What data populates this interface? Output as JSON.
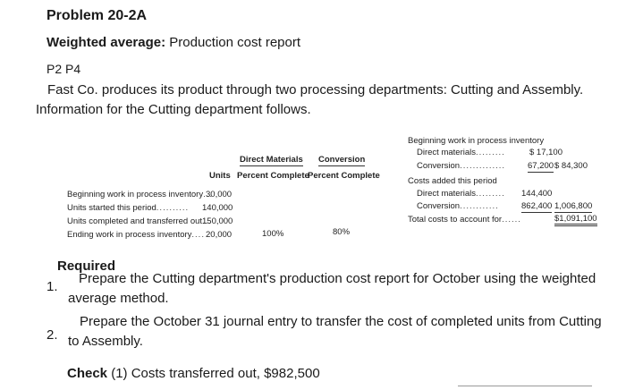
{
  "header": {
    "title": "Problem 20-2A",
    "subtitle_bold": "Weighted average:",
    "subtitle_rest": " Production cost report",
    "code": "P2 P4"
  },
  "intro": {
    "line1": "Fast Co. produces its product through two processing departments: Cutting and Assembly.",
    "line2": "Information for the Cutting department follows."
  },
  "units_table": {
    "col_direct_top": "Direct Materials",
    "col_conv_top": "Conversion",
    "col_units": "Units",
    "col_direct_bottom": "Percent Complete",
    "col_conv_bottom": "Percent Complete",
    "rows": [
      {
        "label": "Beginning work in process inventory",
        "dots": "...",
        "units": "30,000",
        "dm": "",
        "conv": ""
      },
      {
        "label": "Units started this period",
        "dots": "..........",
        "units": "140,000",
        "dm": "",
        "conv": ""
      },
      {
        "label": "Units completed and transferred out",
        "dots": "...",
        "units": "150,000",
        "dm": "",
        "conv": ""
      },
      {
        "label": "Ending work in process inventory",
        "dots": "....",
        "units": "20,000",
        "dm": "100%",
        "conv": "80%"
      }
    ]
  },
  "cost_table": {
    "heading1": "Beginning work in process inventory",
    "dm_label": "Direct materials",
    "dm_dots": ".........",
    "dm_value": "$ 17,100",
    "conv_label": "Conversion",
    "conv_dots": "..............",
    "conv_value": "67,200",
    "conv_total": "$   84,300",
    "heading2": "Costs added this period",
    "dm2_label": "Direct materials",
    "dm2_dots": ".........",
    "dm2_value": "144,400",
    "conv2_label": "Conversion",
    "conv2_dots": "............",
    "conv2_value": "862,400",
    "conv2_total": "1,006,800",
    "total_label": "Total costs to account for",
    "total_dots": "......",
    "total_value": "$1,091,100"
  },
  "required": {
    "heading": "Required",
    "items": [
      {
        "num": "1.",
        "text": "Prepare the Cutting department's production cost report for October using the weighted average method."
      },
      {
        "num": "2.",
        "text": "Prepare the October 31 journal entry to transfer the cost of completed units from Cutting to Assembly."
      }
    ],
    "check_label": "Check",
    "check_text": " (1) Costs transferred out, $982,500"
  }
}
